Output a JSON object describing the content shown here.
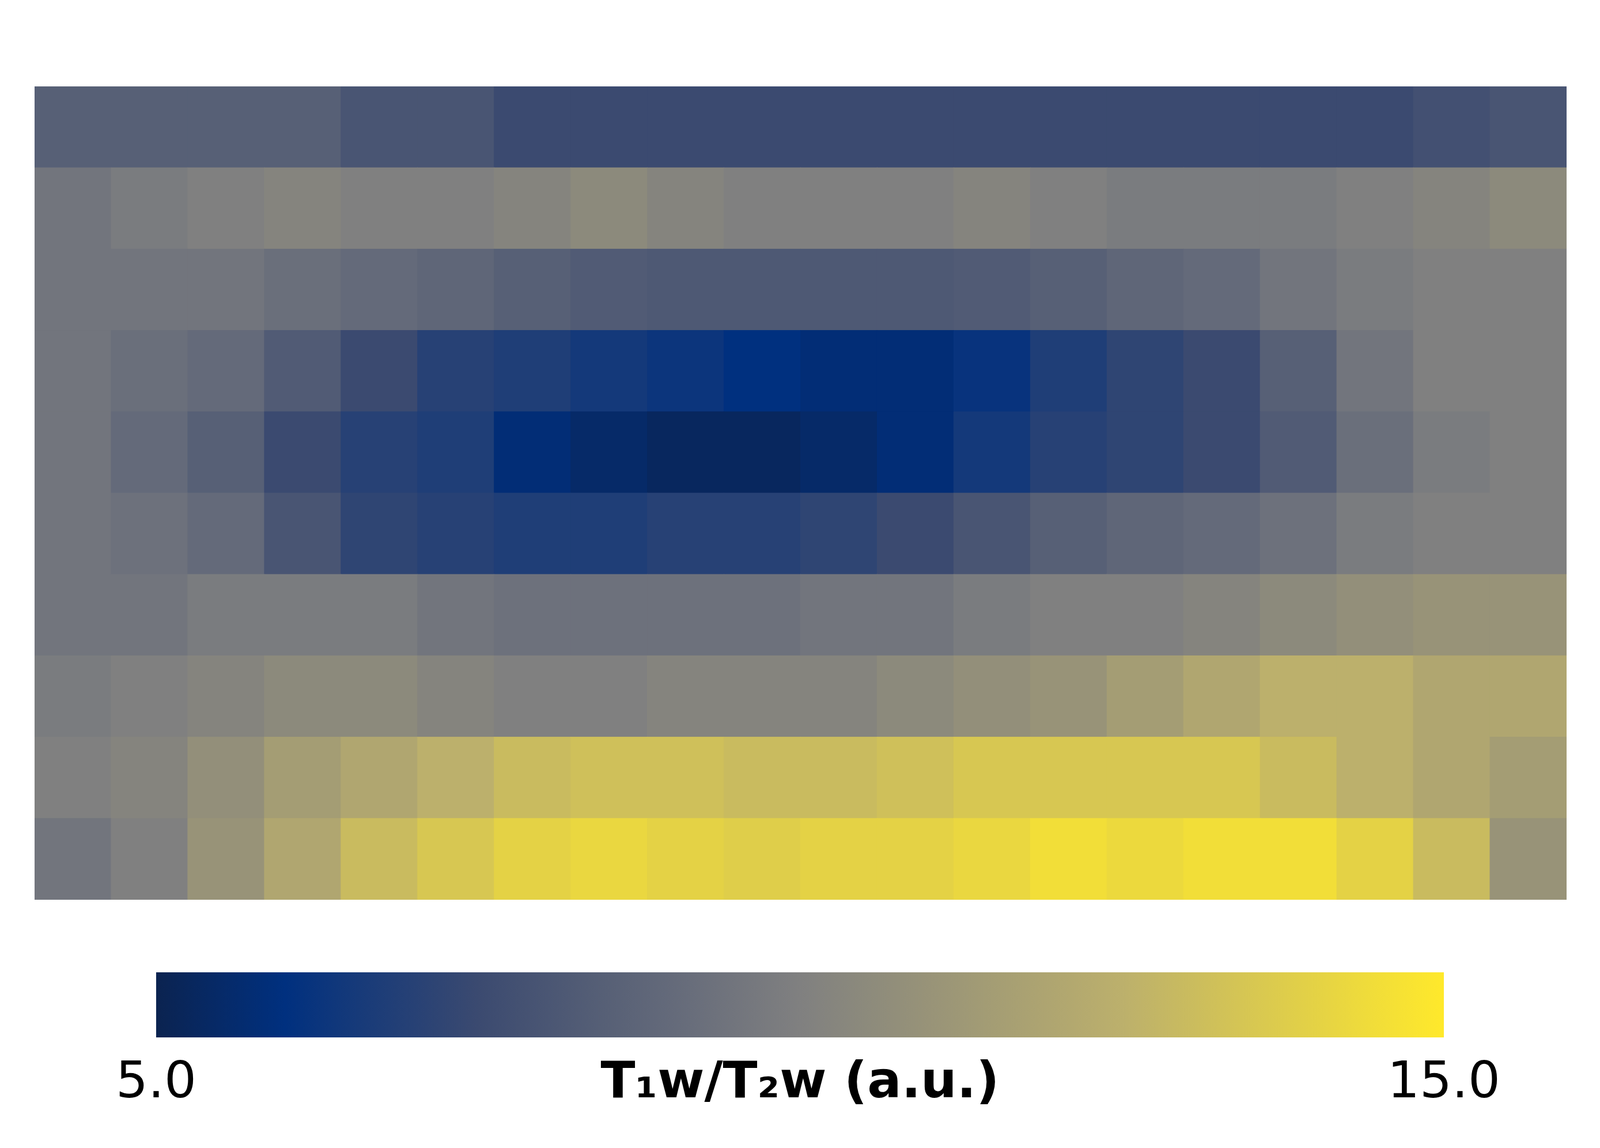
{
  "chart_data": {
    "type": "heatmap",
    "tick_labels": false,
    "cells": [
      [
        8.5,
        8.5,
        8.5,
        8.5,
        8,
        8,
        7.5,
        7.5,
        7.5,
        7.5,
        7.5,
        7.5,
        7.5,
        7.5,
        7.5,
        7.5,
        7.5,
        7.5,
        7.8,
        8
      ],
      [
        9.5,
        9.8,
        10,
        10.2,
        10,
        10,
        10.2,
        10.5,
        10.2,
        10,
        10,
        10,
        10.2,
        10,
        9.8,
        9.8,
        9.8,
        10,
        10.2,
        10.5
      ],
      [
        9.5,
        9.5,
        9.5,
        9.2,
        9,
        8.8,
        8.5,
        8.3,
        8.2,
        8.2,
        8.2,
        8.2,
        8.3,
        8.5,
        8.8,
        9,
        9.5,
        9.8,
        10,
        10
      ],
      [
        9.5,
        9.2,
        9,
        8.3,
        7.5,
        7,
        6.8,
        6.5,
        6.3,
        6,
        5.8,
        5.8,
        6.2,
        6.8,
        7.2,
        7.5,
        8.5,
        9.5,
        10,
        10
      ],
      [
        9.5,
        9,
        8.5,
        7.5,
        7,
        6.8,
        5.8,
        5.5,
        5.3,
        5.3,
        5.5,
        5.8,
        6.5,
        7,
        7.2,
        7.5,
        8.3,
        9.2,
        9.8,
        10
      ],
      [
        9.5,
        9.3,
        9,
        8,
        7.2,
        7,
        6.8,
        6.8,
        7,
        7,
        7.2,
        7.5,
        8,
        8.5,
        8.8,
        9,
        9.3,
        9.8,
        10,
        10
      ],
      [
        9.5,
        9.5,
        9.8,
        9.8,
        9.8,
        9.5,
        9.3,
        9.3,
        9.3,
        9.3,
        9.5,
        9.5,
        9.8,
        10,
        10,
        10.2,
        10.5,
        10.8,
        11,
        11
      ],
      [
        9.8,
        10,
        10.2,
        10.5,
        10.5,
        10.2,
        10,
        10,
        10.2,
        10.2,
        10.2,
        10.5,
        10.8,
        11,
        11.5,
        12,
        12.5,
        12.5,
        12,
        12
      ],
      [
        10,
        10.2,
        10.8,
        11.5,
        12,
        12.5,
        13,
        13.2,
        13.2,
        13,
        13,
        13.2,
        13.5,
        13.5,
        13.5,
        13.5,
        13,
        12.5,
        12,
        11.5
      ],
      [
        9.5,
        10,
        11,
        12,
        13,
        13.5,
        14,
        14.2,
        14,
        13.8,
        14,
        14,
        14.2,
        14.5,
        14.3,
        14.5,
        14.5,
        14,
        13,
        11
      ]
    ],
    "colorbar": {
      "label": "T₁w/T₂w (a.u.)",
      "range": [
        5,
        15
      ],
      "ticks": [
        {
          "value": 5,
          "label": "5.0"
        },
        {
          "value": 15,
          "label": "15.0"
        }
      ]
    }
  }
}
